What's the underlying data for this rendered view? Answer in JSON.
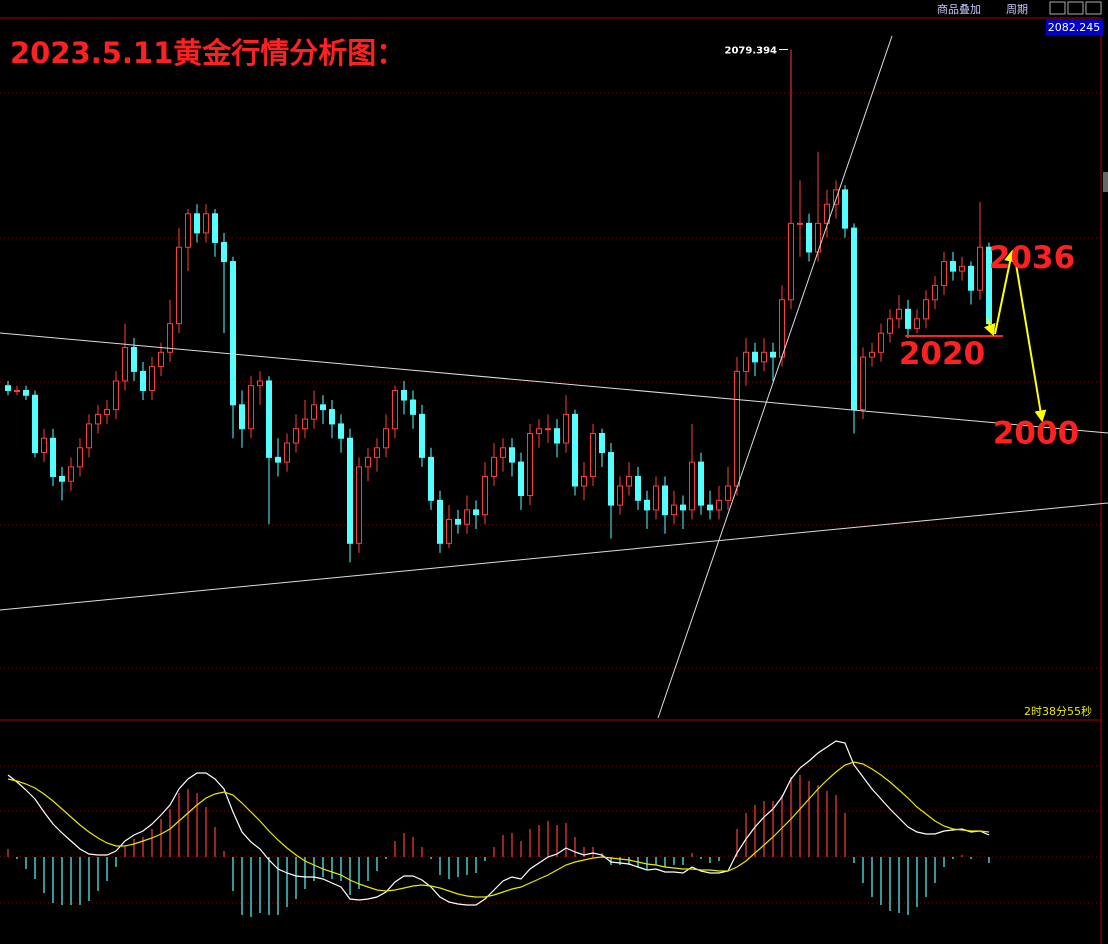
{
  "toolbar": {
    "buttons": [
      "商品叠加",
      "周期"
    ]
  },
  "chart_data": {
    "type": "candlestick",
    "title": "2023.5.11黄金行情分析图：",
    "price_box": 2082.245,
    "timer": "2时38分55秒",
    "ylim": [
      1939,
      2086
    ],
    "up_color": "#ff3c3c",
    "down_color": "#54ffff",
    "high_label_index": 87,
    "annotations": [
      2036,
      2020,
      2000
    ],
    "candles": [
      [
        2009,
        2010,
        2007,
        2008
      ],
      [
        2008,
        2009,
        2007,
        2008
      ],
      [
        2008,
        2009,
        2006,
        2007
      ],
      [
        2007,
        2008,
        1994,
        1995
      ],
      [
        1995,
        2000,
        1993,
        1998
      ],
      [
        1998,
        2000,
        1988,
        1990
      ],
      [
        1990,
        1992,
        1985,
        1989
      ],
      [
        1989,
        1994,
        1987,
        1992
      ],
      [
        1992,
        1998,
        1990,
        1996
      ],
      [
        1996,
        2003,
        1994,
        2001
      ],
      [
        2001,
        2005,
        1999,
        2003
      ],
      [
        2003,
        2006,
        2001,
        2004
      ],
      [
        2004,
        2012,
        2002,
        2010
      ],
      [
        2010,
        2022,
        2008,
        2017
      ],
      [
        2017,
        2019,
        2010,
        2012
      ],
      [
        2012,
        2014,
        2006,
        2008
      ],
      [
        2008,
        2015,
        2006,
        2013
      ],
      [
        2013,
        2018,
        2011,
        2016
      ],
      [
        2016,
        2027,
        2014,
        2022
      ],
      [
        2022,
        2042,
        2020,
        2038
      ],
      [
        2038,
        2046,
        2033,
        2045
      ],
      [
        2045,
        2047,
        2039,
        2041
      ],
      [
        2041,
        2047,
        2039,
        2045
      ],
      [
        2045,
        2046,
        2036,
        2039
      ],
      [
        2039,
        2041,
        2020,
        2035
      ],
      [
        2035,
        2036,
        1998,
        2005
      ],
      [
        2005,
        2008,
        1996,
        2000
      ],
      [
        2000,
        2011,
        1998,
        2009
      ],
      [
        2009,
        2012,
        2005,
        2010
      ],
      [
        2010,
        2011,
        1980,
        1994
      ],
      [
        1994,
        1998,
        1990,
        1993
      ],
      [
        1993,
        1999,
        1991,
        1997
      ],
      [
        1997,
        2003,
        1995,
        2000
      ],
      [
        2000,
        2006,
        1998,
        2002
      ],
      [
        2002,
        2008,
        2000,
        2005
      ],
      [
        2005,
        2007,
        2001,
        2004
      ],
      [
        2004,
        2006,
        1998,
        2001
      ],
      [
        2001,
        2003,
        1995,
        1998
      ],
      [
        1998,
        2000,
        1972,
        1976
      ],
      [
        1976,
        1994,
        1974,
        1992
      ],
      [
        1992,
        1996,
        1989,
        1994
      ],
      [
        1994,
        1998,
        1991,
        1996
      ],
      [
        1996,
        2003,
        1994,
        2000
      ],
      [
        2000,
        2009,
        1998,
        2008
      ],
      [
        2008,
        2010,
        2003,
        2006
      ],
      [
        2006,
        2008,
        2000,
        2003
      ],
      [
        2003,
        2005,
        1992,
        1994
      ],
      [
        1994,
        1996,
        1983,
        1985
      ],
      [
        1985,
        1987,
        1974,
        1976
      ],
      [
        1976,
        1984,
        1975,
        1981
      ],
      [
        1981,
        1983,
        1978,
        1980
      ],
      [
        1980,
        1986,
        1978,
        1983
      ],
      [
        1983,
        1985,
        1979,
        1982
      ],
      [
        1982,
        1993,
        1980,
        1990
      ],
      [
        1990,
        1997,
        1988,
        1994
      ],
      [
        1994,
        1998,
        1991,
        1996
      ],
      [
        1996,
        1998,
        1990,
        1993
      ],
      [
        1993,
        1995,
        1983,
        1986
      ],
      [
        1986,
        2001,
        1984,
        1999
      ],
      [
        1999,
        2002,
        1996,
        2000
      ],
      [
        2000,
        2003,
        1997,
        2000
      ],
      [
        2000,
        2002,
        1994,
        1997
      ],
      [
        1997,
        2007,
        1995,
        2003
      ],
      [
        2003,
        2004,
        1986,
        1988
      ],
      [
        1988,
        1993,
        1985,
        1990
      ],
      [
        1990,
        2001,
        1988,
        1999
      ],
      [
        1999,
        2000,
        1992,
        1995
      ],
      [
        1995,
        1997,
        1977,
        1984
      ],
      [
        1984,
        1990,
        1982,
        1988
      ],
      [
        1988,
        1993,
        1986,
        1990
      ],
      [
        1990,
        1992,
        1983,
        1985
      ],
      [
        1985,
        1987,
        1979,
        1983
      ],
      [
        1983,
        1990,
        1981,
        1988
      ],
      [
        1988,
        1990,
        1978,
        1982
      ],
      [
        1982,
        1987,
        1980,
        1984
      ],
      [
        1984,
        1986,
        1979,
        1983
      ],
      [
        1983,
        2001,
        1981,
        1993
      ],
      [
        1993,
        1995,
        1982,
        1984
      ],
      [
        1984,
        1987,
        1981,
        1983
      ],
      [
        1983,
        1988,
        1981,
        1985
      ],
      [
        1985,
        1992,
        1983,
        1988
      ],
      [
        1988,
        2015,
        1986,
        2012
      ],
      [
        2012,
        2019,
        2009,
        2016
      ],
      [
        2016,
        2018,
        2011,
        2014
      ],
      [
        2014,
        2019,
        2012,
        2016
      ],
      [
        2016,
        2018,
        2010,
        2015
      ],
      [
        2015,
        2030,
        2013,
        2027
      ],
      [
        2027,
        2079.394,
        2025,
        2043
      ],
      [
        2043,
        2052,
        2036,
        2043
      ],
      [
        2043,
        2045,
        2035,
        2037
      ],
      [
        2037,
        2058,
        2035,
        2043
      ],
      [
        2043,
        2050,
        2040,
        2047
      ],
      [
        2047,
        2052,
        2044,
        2050
      ],
      [
        2050,
        2051,
        2040,
        2042
      ],
      [
        2042,
        2043,
        1999,
        2004
      ],
      [
        2004,
        2017,
        2002,
        2015
      ],
      [
        2015,
        2018,
        2013,
        2016
      ],
      [
        2016,
        2022,
        2014,
        2020
      ],
      [
        2020,
        2025,
        2018,
        2023
      ],
      [
        2023,
        2028,
        2021,
        2025
      ],
      [
        2025,
        2027,
        2019,
        2021
      ],
      [
        2021,
        2025,
        2020,
        2023
      ],
      [
        2023,
        2029,
        2021,
        2027
      ],
      [
        2027,
        2032,
        2025,
        2030
      ],
      [
        2030,
        2037,
        2028,
        2035
      ],
      [
        2035,
        2037,
        2031,
        2033
      ],
      [
        2033,
        2036,
        2031,
        2034
      ],
      [
        2034,
        2035,
        2026,
        2029
      ],
      [
        2029,
        2047.5,
        2027,
        2038
      ],
      [
        2038,
        2039,
        2021,
        2022
      ]
    ],
    "macd": {
      "ylim": [
        -8.7,
        13.7
      ],
      "dif_color": "#ffffff",
      "dea_color": "#e8e800",
      "dif": [
        8.2,
        7.5,
        6.7,
        5.8,
        4.5,
        3.3,
        2.4,
        1.6,
        0.8,
        0.3,
        0.2,
        0.2,
        0.6,
        1.6,
        2.2,
        2.6,
        3.3,
        4.2,
        5.2,
        6.8,
        7.8,
        8.4,
        8.4,
        7.8,
        6.8,
        4.5,
        2.5,
        1.5,
        0.8,
        -0.3,
        -1.2,
        -1.6,
        -1.9,
        -2.0,
        -2.0,
        -2.2,
        -2.6,
        -3.0,
        -4.2,
        -4.3,
        -4.2,
        -4.0,
        -3.5,
        -2.5,
        -1.9,
        -1.9,
        -2.3,
        -3.0,
        -4.0,
        -4.5,
        -4.7,
        -4.8,
        -4.8,
        -4.2,
        -3.3,
        -2.4,
        -2.0,
        -2.2,
        -1.2,
        -0.6,
        0.0,
        0.3,
        0.9,
        0.5,
        0.2,
        0.4,
        0.2,
        -0.5,
        -0.6,
        -0.7,
        -1.0,
        -1.3,
        -1.2,
        -1.5,
        -1.5,
        -1.6,
        -1.0,
        -1.4,
        -1.6,
        -1.6,
        -1.4,
        0.4,
        1.8,
        3.0,
        4.0,
        4.8,
        6.0,
        7.8,
        8.9,
        9.6,
        10.4,
        11.0,
        11.6,
        11.4,
        9.2,
        8.0,
        6.8,
        5.8,
        4.8,
        3.9,
        3.0,
        2.5,
        2.3,
        2.3,
        2.6,
        2.7,
        2.8,
        2.5,
        2.6,
        2.2
      ],
      "dea": [
        7.8,
        7.6,
        7.3,
        6.9,
        6.3,
        5.6,
        4.8,
        4.0,
        3.2,
        2.5,
        1.9,
        1.4,
        1.1,
        1.1,
        1.3,
        1.6,
        1.9,
        2.3,
        2.8,
        3.6,
        4.4,
        5.2,
        5.9,
        6.3,
        6.5,
        6.2,
        5.4,
        4.5,
        3.6,
        2.6,
        1.7,
        0.9,
        0.2,
        -0.4,
        -0.8,
        -1.2,
        -1.5,
        -1.8,
        -2.3,
        -2.7,
        -3.0,
        -3.3,
        -3.4,
        -3.3,
        -3.1,
        -2.9,
        -2.8,
        -2.9,
        -3.1,
        -3.4,
        -3.7,
        -3.9,
        -4.0,
        -4.0,
        -3.8,
        -3.5,
        -3.2,
        -3.0,
        -2.6,
        -2.2,
        -1.8,
        -1.3,
        -0.8,
        -0.5,
        -0.3,
        -0.1,
        0.0,
        -0.1,
        -0.2,
        -0.3,
        -0.5,
        -0.7,
        -0.8,
        -1.0,
        -1.1,
        -1.2,
        -1.2,
        -1.3,
        -1.3,
        -1.4,
        -1.4,
        -1.0,
        -0.4,
        0.4,
        1.2,
        2.0,
        2.9,
        3.8,
        4.8,
        5.8,
        6.8,
        7.7,
        8.5,
        9.2,
        9.5,
        9.3,
        8.8,
        8.2,
        7.5,
        6.7,
        5.9,
        5.0,
        4.3,
        3.6,
        3.1,
        2.8,
        2.7,
        2.6,
        2.6,
        2.5
      ],
      "hist": [
        0.8,
        -0.2,
        -1.2,
        -2.2,
        -3.6,
        -4.6,
        -4.8,
        -4.8,
        -4.8,
        -4.4,
        -3.4,
        -2.4,
        -1.0,
        1.0,
        1.8,
        2.0,
        2.8,
        3.8,
        4.8,
        6.4,
        6.8,
        6.4,
        5.0,
        3.0,
        0.6,
        -3.4,
        -5.8,
        -6.0,
        -5.6,
        -5.8,
        -5.8,
        -5.0,
        -4.2,
        -3.2,
        -2.4,
        -2.0,
        -2.2,
        -2.4,
        -3.8,
        -3.2,
        -2.4,
        -1.4,
        -0.2,
        1.6,
        2.4,
        2.0,
        1.0,
        -0.2,
        -1.8,
        -2.2,
        -2.0,
        -1.8,
        -1.6,
        -0.4,
        1.0,
        2.2,
        2.4,
        1.6,
        2.8,
        3.2,
        3.6,
        3.2,
        3.4,
        2.0,
        1.0,
        1.0,
        0.4,
        -0.8,
        -0.8,
        -0.8,
        -1.0,
        -1.2,
        -0.8,
        -1.0,
        -0.8,
        -0.8,
        0.4,
        -0.2,
        -0.6,
        -0.4,
        0.0,
        2.8,
        4.4,
        5.2,
        5.6,
        5.6,
        6.2,
        8.0,
        8.2,
        7.6,
        7.2,
        6.6,
        6.2,
        4.4,
        -0.6,
        -2.6,
        -4.0,
        -4.8,
        -5.4,
        -5.6,
        -5.8,
        -5.0,
        -4.0,
        -2.6,
        -1.0,
        -0.2,
        0.2,
        -0.2,
        0.0,
        -0.6
      ]
    }
  }
}
